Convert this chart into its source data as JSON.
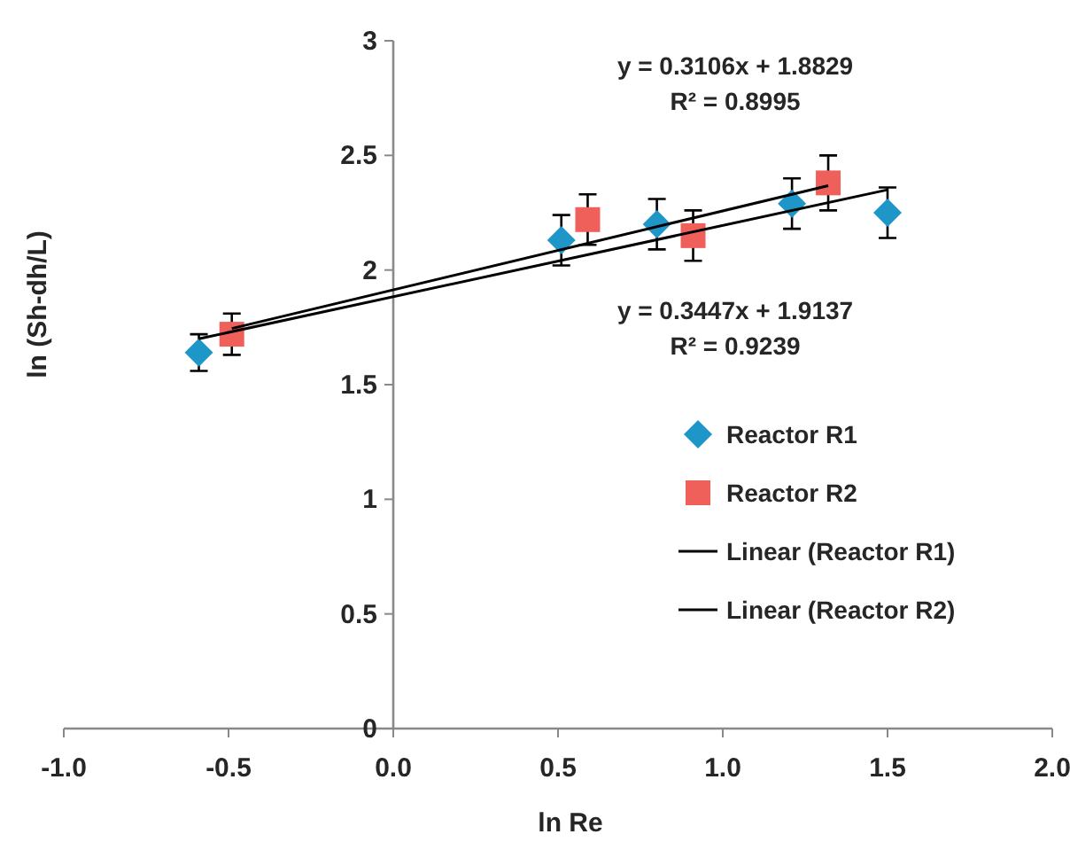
{
  "chart_data": {
    "type": "scatter",
    "xlabel": "ln Re",
    "ylabel": "ln (Sh-dh/L)",
    "xlim": [
      -1,
      2
    ],
    "xticks": [
      {
        "value": -1,
        "label": "-1.0"
      },
      {
        "value": -0.5,
        "label": "-0.5"
      },
      {
        "value": 0,
        "label": "0.0"
      },
      {
        "value": 0.5,
        "label": "0.5"
      },
      {
        "value": 1,
        "label": "1.0"
      },
      {
        "value": 1.5,
        "label": "1.5"
      },
      {
        "value": 2,
        "label": "2.0"
      }
    ],
    "ylim": [
      0,
      3
    ],
    "yticks": [
      0,
      0.5,
      1,
      1.5,
      2,
      2.5,
      3
    ],
    "grid": false,
    "legend": "right",
    "series": [
      {
        "name": "Reactor R1",
        "marker": "diamond",
        "color": "#1f96c8",
        "x": [
          -0.59,
          0.51,
          0.8,
          1.21,
          1.5
        ],
        "values": [
          1.64,
          2.13,
          2.2,
          2.29,
          2.25
        ],
        "errors": [
          0.08,
          0.11,
          0.11,
          0.11,
          0.11
        ]
      },
      {
        "name": "Reactor R2",
        "marker": "square",
        "color": "#f0605a",
        "x": [
          -0.49,
          0.59,
          0.91,
          1.32
        ],
        "values": [
          1.72,
          2.22,
          2.15,
          2.38
        ],
        "errors": [
          0.09,
          0.11,
          0.11,
          0.12
        ]
      },
      {
        "name": "Linear (Reactor R1)",
        "type": "line",
        "marker": "none",
        "line_style": "solid",
        "color": "#000000",
        "x": [
          -0.59,
          1.5
        ],
        "values": [
          1.7,
          2.35
        ]
      },
      {
        "name": "Linear (Reactor R2)",
        "type": "line",
        "marker": "none",
        "line_style": "solid",
        "color": "#000000",
        "x": [
          -0.49,
          1.32
        ],
        "values": [
          1.745,
          2.368
        ]
      }
    ],
    "annotations": [
      "y = 0.3106x + 1.8829\nR² = 0.8995",
      "y = 0.3447x + 1.9137\nR² = 0.9239"
    ]
  }
}
